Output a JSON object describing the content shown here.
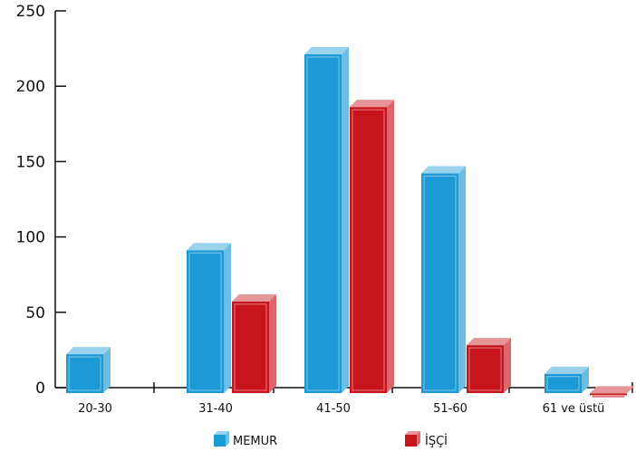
{
  "chart_data": {
    "type": "bar",
    "title": "",
    "xlabel": "",
    "ylabel": "",
    "categories": [
      "20-30",
      "31-40",
      "41-50",
      "51-60",
      "61 ve üstü"
    ],
    "series": [
      {
        "name": "MEMUR",
        "values": [
          27,
          96,
          226,
          147,
          14
        ],
        "color": "#1b9ad6"
      },
      {
        "name": "İŞÇİ",
        "values": [
          0,
          62,
          191,
          33,
          1
        ],
        "color": "#c8141c"
      }
    ],
    "ylim": [
      0,
      250
    ],
    "yticks": [
      0,
      50,
      100,
      150,
      200,
      250
    ],
    "grid": false,
    "legend": "bottom-center"
  }
}
